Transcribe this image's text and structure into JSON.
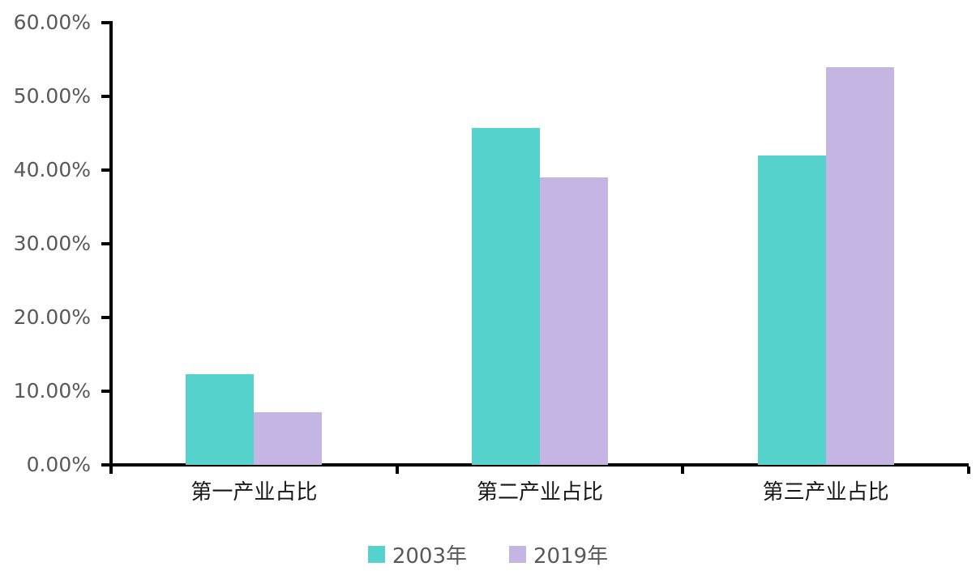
{
  "chart_data": {
    "type": "bar",
    "title": "",
    "xlabel": "",
    "ylabel": "",
    "categories": [
      "第一产业占比",
      "第二产业占比",
      "第三产业占比"
    ],
    "series": [
      {
        "name": "2003年",
        "color": "#56D2CD",
        "values": [
          12.3,
          45.7,
          42.0
        ]
      },
      {
        "name": "2019年",
        "color": "#C4B5E2",
        "values": [
          7.1,
          39.0,
          54.0
        ]
      }
    ],
    "ylim": [
      0,
      60
    ],
    "y_tick_step": 10,
    "y_tick_labels": [
      "0.00%",
      "10.00%",
      "20.00%",
      "30.00%",
      "40.00%",
      "50.00%",
      "60.00%"
    ],
    "grid": "off",
    "legend_position": "bottom",
    "colors": {
      "axis": "#000000",
      "y_label_text": "#595959",
      "x_label_text": "#171717",
      "legend_text": "#595959",
      "background": "#ffffff"
    }
  }
}
